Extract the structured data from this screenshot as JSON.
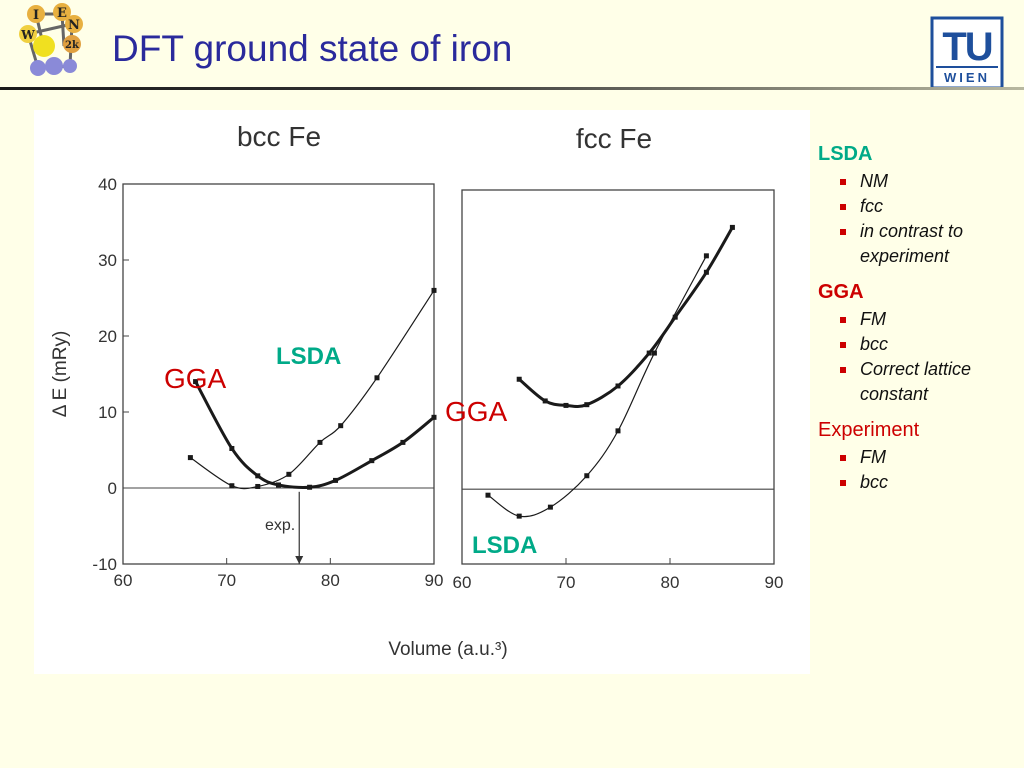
{
  "slide": {
    "title": "DFT ground state of iron",
    "logo_left_letters": [
      "I",
      "E",
      "W",
      "N",
      "2k"
    ],
    "logo_right_text": "TU",
    "logo_right_subtext": "WIEN"
  },
  "legend": {
    "sections": [
      {
        "label": "LSDA",
        "color": "#00aa88",
        "bold": true,
        "items": [
          "NM",
          "fcc",
          "in contrast to experiment"
        ]
      },
      {
        "label": "GGA",
        "color": "#cc0000",
        "bold": true,
        "items": [
          "FM",
          "bcc",
          "Correct lattice constant"
        ]
      },
      {
        "label": "Experiment",
        "color": "#cc0000",
        "bold": false,
        "items": [
          "FM",
          "bcc"
        ]
      }
    ]
  },
  "chart_data": [
    {
      "type": "line",
      "title": "bcc Fe",
      "xlabel": "Volume (a.u.³)",
      "ylabel": "Δ E (mRy)",
      "xlim": [
        60,
        90
      ],
      "ylim": [
        -10,
        40
      ],
      "xticks": [
        "60",
        "70",
        "80",
        "90"
      ],
      "yticks": [
        "-10",
        "0",
        "10",
        "20",
        "30",
        "40"
      ],
      "annotation": "exp.",
      "exp_volume": 77,
      "series": [
        {
          "name": "LSDA",
          "label_color": "#00aa88",
          "x": [
            66.5,
            70.5,
            73,
            76,
            79,
            81,
            84.5,
            90
          ],
          "y": [
            4,
            0.3,
            0.2,
            1.8,
            6,
            8.2,
            14.5,
            26
          ]
        },
        {
          "name": "GGA",
          "label_color": "#cc0000",
          "x": [
            67,
            70.5,
            73,
            75,
            78,
            80.5,
            84,
            87,
            90
          ],
          "y": [
            14,
            5.2,
            1.6,
            0.4,
            0.1,
            1,
            3.6,
            6,
            9.3
          ]
        }
      ]
    },
    {
      "type": "line",
      "title": "fcc Fe",
      "xlim": [
        60,
        90
      ],
      "ylim": [
        -10,
        40
      ],
      "xticks": [
        "60",
        "70",
        "80",
        "90"
      ],
      "series": [
        {
          "name": "LSDA",
          "label_color": "#00aa88",
          "x": [
            62.5,
            65.5,
            68.5,
            72,
            75,
            78.5,
            83.5
          ],
          "y": [
            -0.8,
            -3.6,
            -2.4,
            1.8,
            7.8,
            18.2,
            31.2
          ]
        },
        {
          "name": "GGA",
          "label_color": "#cc0000",
          "x": [
            65.5,
            68,
            70,
            72,
            75,
            78,
            80.5,
            83.5,
            86
          ],
          "y": [
            14.7,
            11.8,
            11.2,
            11.3,
            13.8,
            18.2,
            23,
            29,
            35
          ]
        }
      ]
    }
  ]
}
